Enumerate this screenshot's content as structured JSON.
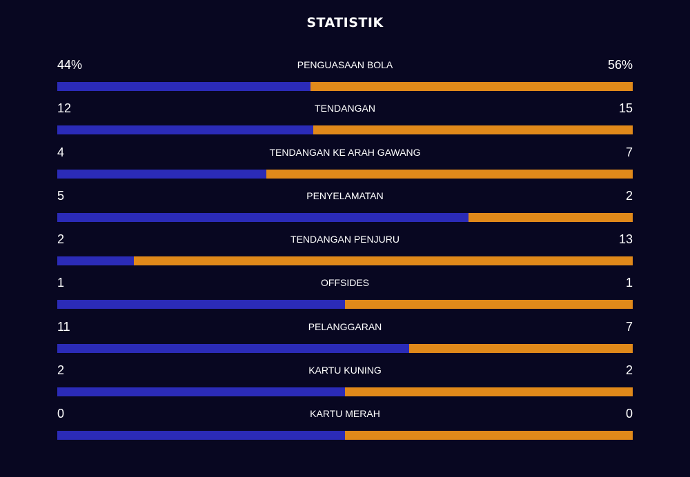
{
  "title": "STATISTIK",
  "colors": {
    "background": "#080721",
    "home": "#2b2bb7",
    "away": "#e0891a"
  },
  "stats": [
    {
      "label": "PENGUASAAN BOLA",
      "left": "44%",
      "right": "56%",
      "left_num": 44,
      "right_num": 56
    },
    {
      "label": "TENDANGAN",
      "left": "12",
      "right": "15",
      "left_num": 12,
      "right_num": 15
    },
    {
      "label": "TENDANGAN KE ARAH GAWANG",
      "left": "4",
      "right": "7",
      "left_num": 4,
      "right_num": 7
    },
    {
      "label": "PENYELAMATAN",
      "left": "5",
      "right": "2",
      "left_num": 5,
      "right_num": 2
    },
    {
      "label": "TENDANGAN PENJURU",
      "left": "2",
      "right": "13",
      "left_num": 2,
      "right_num": 13
    },
    {
      "label": "OFFSIDES",
      "left": "1",
      "right": "1",
      "left_num": 1,
      "right_num": 1
    },
    {
      "label": "PELANGGARAN",
      "left": "11",
      "right": "7",
      "left_num": 11,
      "right_num": 7
    },
    {
      "label": "KARTU KUNING",
      "left": "2",
      "right": "2",
      "left_num": 2,
      "right_num": 2
    },
    {
      "label": "KARTU MERAH",
      "left": "0",
      "right": "0",
      "left_num": 0,
      "right_num": 0
    }
  ]
}
